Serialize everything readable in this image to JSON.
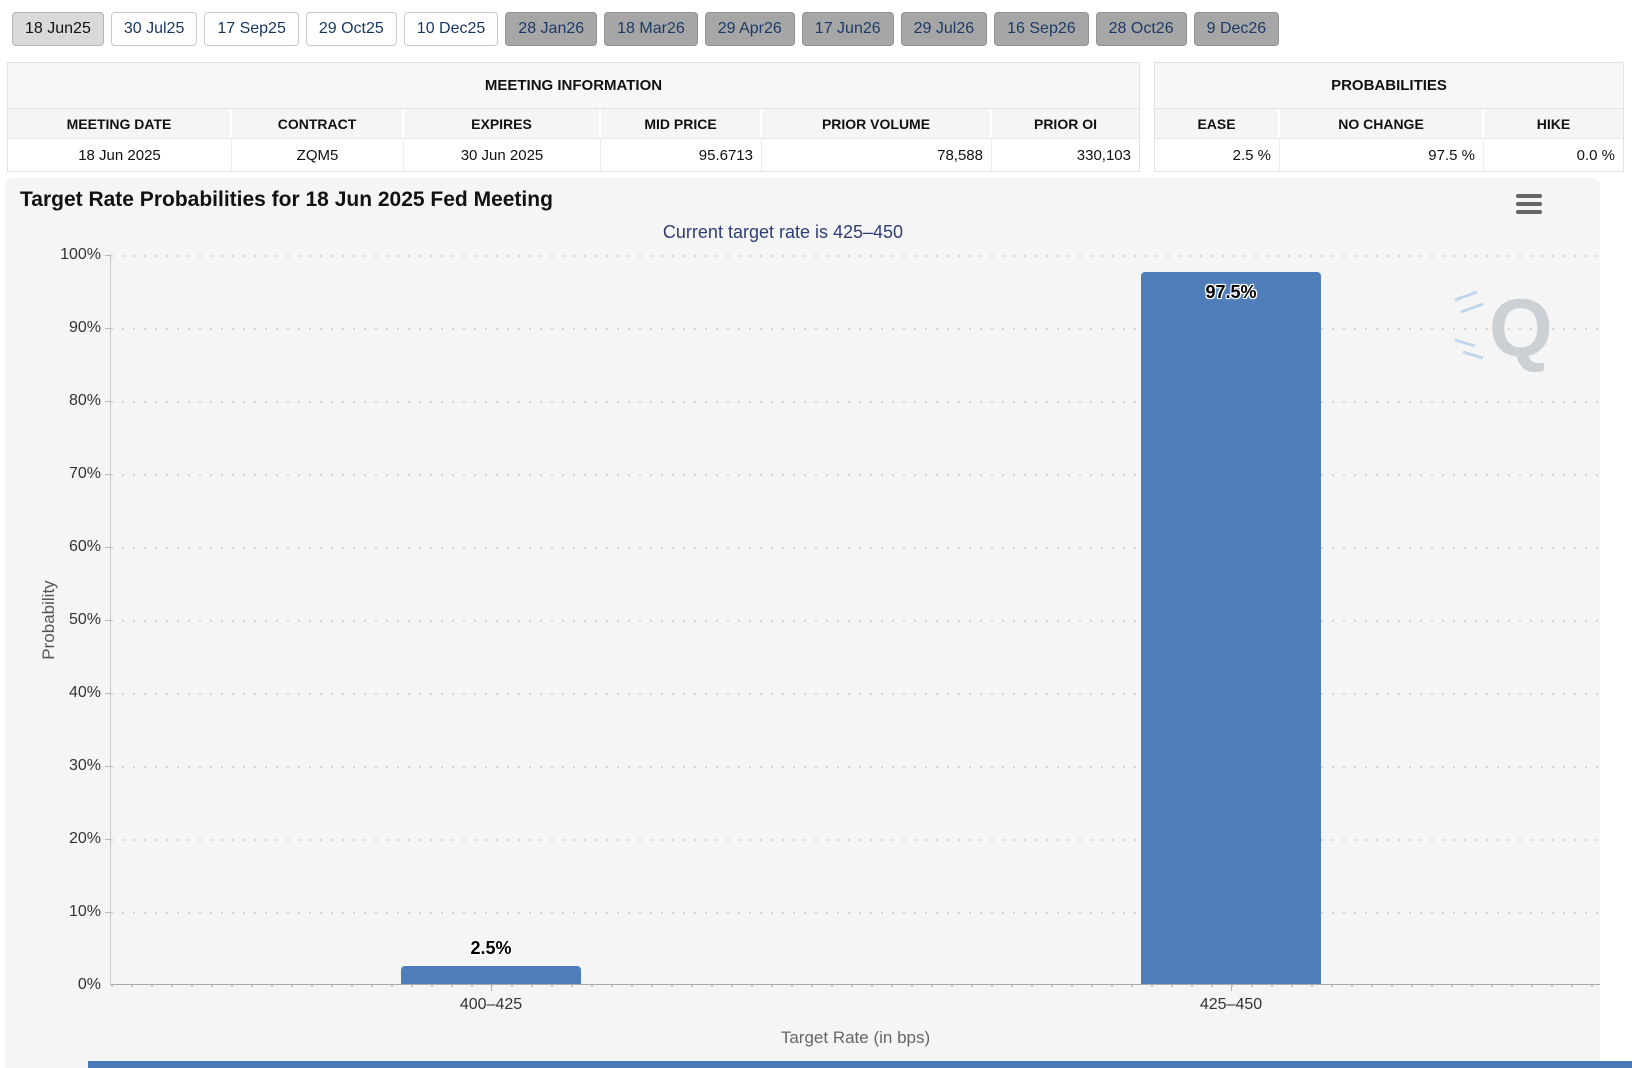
{
  "tabs": [
    "18 Jun25",
    "30 Jul25",
    "17 Sep25",
    "29 Oct25",
    "10 Dec25",
    "28 Jan26",
    "18 Mar26",
    "29 Apr26",
    "17 Jun26",
    "29 Jul26",
    "16 Sep26",
    "28 Oct26",
    "9 Dec26"
  ],
  "selected_tab": "18 Jun25",
  "meeting_info": {
    "title": "MEETING INFORMATION",
    "columns": [
      "MEETING DATE",
      "CONTRACT",
      "EXPIRES",
      "MID PRICE",
      "PRIOR VOLUME",
      "PRIOR OI"
    ],
    "values": [
      "18 Jun 2025",
      "ZQM5",
      "30 Jun 2025",
      "95.6713",
      "78,588",
      "330,103"
    ]
  },
  "probabilities": {
    "title": "PROBABILITIES",
    "columns": [
      "EASE",
      "NO CHANGE",
      "HIKE"
    ],
    "values": [
      "2.5 %",
      "97.5 %",
      "0.0 %"
    ]
  },
  "icons": {
    "menu": "hamburger-menu-icon",
    "watermark": "Q-logo-watermark"
  },
  "chart_data": {
    "type": "bar",
    "title": "Target Rate Probabilities for 18 Jun 2025 Fed Meeting",
    "subtitle": "Current target rate is 425–450",
    "categories": [
      "400–425",
      "425–450"
    ],
    "values": [
      2.5,
      97.5
    ],
    "labels": [
      "2.5%",
      "97.5%"
    ],
    "xlabel": "Target Rate (in bps)",
    "ylabel": "Probability",
    "ylim": [
      0,
      100
    ],
    "yticks": [
      "100%",
      "90%",
      "80%",
      "70%",
      "60%",
      "50%",
      "40%",
      "30%",
      "20%",
      "10%",
      "0%"
    ],
    "grid": true,
    "legend": "none",
    "bar_color": "#4e7db9"
  }
}
